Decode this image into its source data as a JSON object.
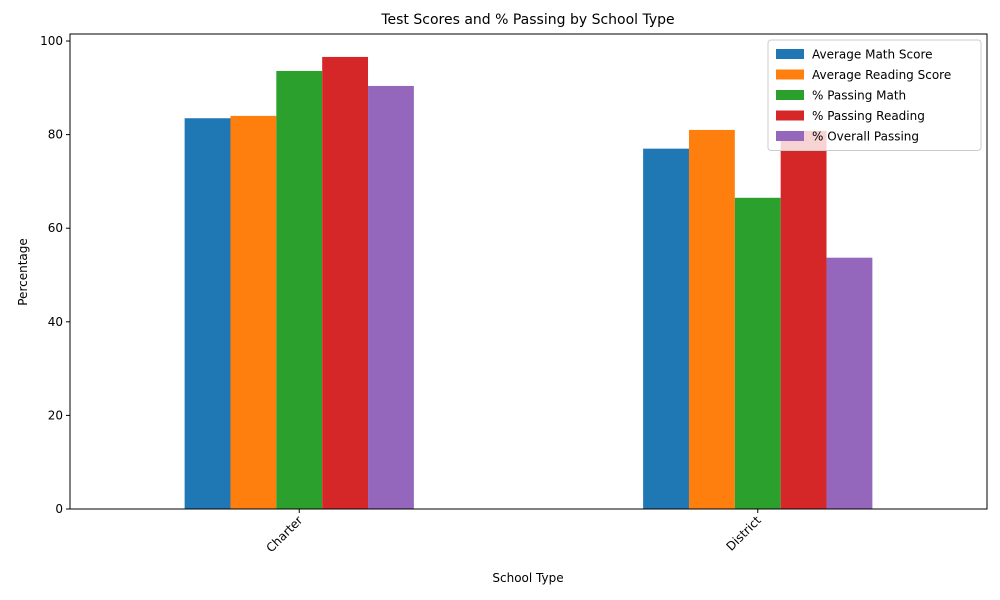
{
  "chart_data": {
    "type": "bar",
    "title": "Test Scores and % Passing by School Type",
    "xlabel": "School Type",
    "ylabel": "Percentage",
    "categories": [
      "Charter",
      "District"
    ],
    "ylim": [
      0,
      101.5
    ],
    "yticks": [
      0,
      20,
      40,
      60,
      80,
      100
    ],
    "grid": false,
    "legend_position": "top-right",
    "series": [
      {
        "name": "Average Math Score",
        "color": "#1f77b4",
        "values": [
          83.5,
          77.0
        ]
      },
      {
        "name": "Average Reading Score",
        "color": "#ff7f0e",
        "values": [
          84.0,
          81.0
        ]
      },
      {
        "name": "% Passing Math",
        "color": "#2ca02c",
        "values": [
          93.6,
          66.5
        ]
      },
      {
        "name": "% Passing Reading",
        "color": "#d62728",
        "values": [
          96.6,
          80.8
        ]
      },
      {
        "name": "% Overall Passing",
        "color": "#9467bd",
        "values": [
          90.4,
          53.7
        ]
      }
    ]
  }
}
